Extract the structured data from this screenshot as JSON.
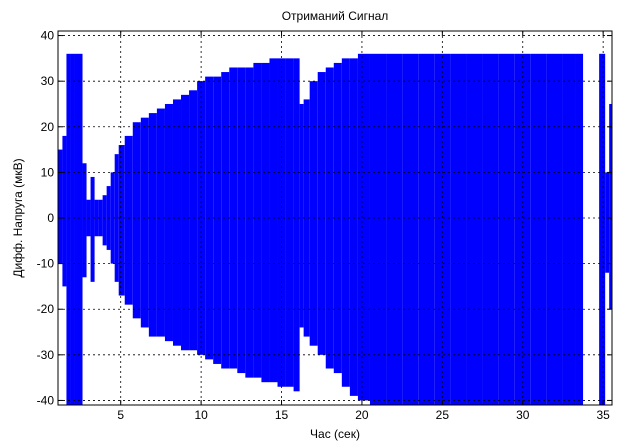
{
  "chart_data": {
    "type": "envelope",
    "title": "Отриманий Сигнал",
    "x_label": "Час (сек)",
    "y_label": "Дифф. Напруга (мкВ)",
    "x": [
      1.25,
      1.5,
      1.75,
      2,
      2.25,
      2.5,
      2.75,
      3,
      3.25,
      3.5,
      3.75,
      4,
      4.25,
      4.5,
      4.75,
      5,
      5.5,
      6,
      6.5,
      7,
      7.5,
      8,
      8.5,
      9,
      9.5,
      10,
      10.5,
      11,
      11.5,
      12,
      12.5,
      13,
      13.5,
      14,
      14.5,
      15,
      15.5,
      16,
      16.25,
      16.5,
      17,
      17.5,
      18,
      18.5,
      19,
      19.5,
      20,
      21,
      22,
      23,
      24,
      25,
      26,
      27,
      28,
      29,
      30,
      31,
      32,
      33,
      33.5,
      34,
      34.5,
      35,
      35.25,
      35.5
    ],
    "series": [
      {
        "color": "#0000ff",
        "values": [
          15,
          18,
          36,
          36,
          36,
          36,
          12,
          4,
          9,
          4,
          4,
          5,
          7,
          10,
          14,
          16,
          18,
          21,
          22,
          23,
          24,
          25,
          26,
          27,
          28,
          30,
          31,
          31,
          32,
          33,
          33,
          33,
          34,
          34,
          35,
          35,
          35,
          35,
          25,
          26,
          30,
          32,
          33,
          34,
          35,
          35,
          36,
          36,
          36,
          36,
          36,
          36,
          36,
          36,
          36,
          36,
          36,
          36,
          36,
          36,
          36,
          null,
          null,
          36,
          10,
          25
        ]
      },
      {
        "color": "#0000ff",
        "values": [
          -10,
          -15,
          -41,
          -41,
          -41,
          -41,
          -13,
          -4,
          -14,
          -4,
          -4,
          -6,
          -7,
          -10,
          -14,
          -17,
          -19,
          -22,
          -24,
          -26,
          -26,
          -27,
          -28,
          -29,
          -29,
          -30,
          -31,
          -32,
          -33,
          -33,
          -34,
          -35,
          -35,
          -36,
          -36,
          -37,
          -37,
          -38,
          -24,
          -26,
          -28,
          -30,
          -33,
          -34,
          -37,
          -39,
          -40,
          -41,
          -41,
          -41,
          -41,
          -41,
          -41,
          -41,
          -41,
          -41,
          -41,
          -41,
          -41,
          -41,
          -41,
          null,
          null,
          -41,
          -12,
          -20
        ]
      }
    ],
    "xlim": [
      1.1,
      35.55
    ],
    "ylim": [
      -41,
      41
    ],
    "xticks": [
      5,
      10,
      15,
      20,
      25,
      30,
      35
    ],
    "yticks": [
      -40,
      -30,
      -20,
      -10,
      0,
      10,
      20,
      30,
      40
    ],
    "grid": true
  }
}
